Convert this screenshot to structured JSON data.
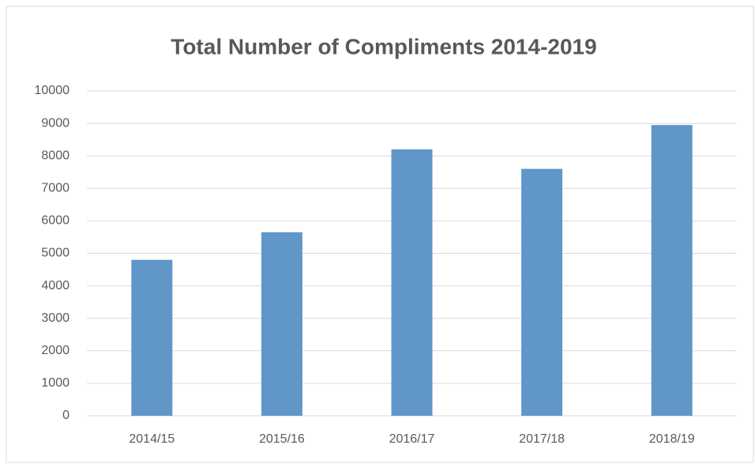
{
  "chart_data": {
    "type": "bar",
    "title": "Total Number of Compliments 2014-2019",
    "categories": [
      "2014/15",
      "2015/16",
      "2016/17",
      "2017/18",
      "2018/19"
    ],
    "values": [
      4800,
      5650,
      8200,
      7600,
      8950
    ],
    "color": "#6096c8",
    "ylim": [
      0,
      10000
    ],
    "yticks": [
      0,
      1000,
      2000,
      3000,
      4000,
      5000,
      6000,
      7000,
      8000,
      9000,
      10000
    ],
    "grid": true
  }
}
